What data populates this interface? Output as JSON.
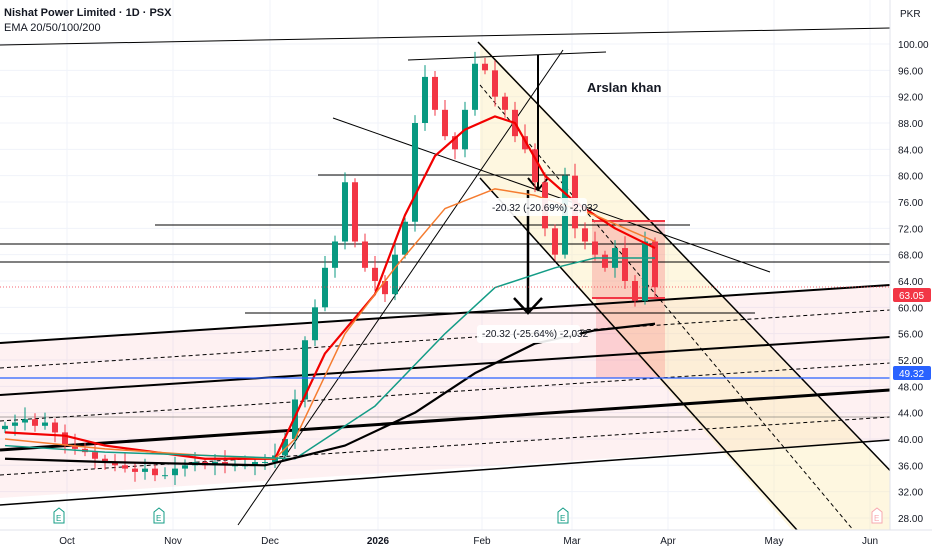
{
  "header": {
    "title": "Nishat Power Limited · 1D · PSX",
    "indicator": "EMA 20/50/100/200"
  },
  "currency": "PKR",
  "annotations": {
    "author": "Arslan khan",
    "measure_1": "-20.32 (-20.69%) -2,032",
    "measure_2": "-20.32 (-25.64%) -2,032"
  },
  "price_labels": {
    "last": "63.05",
    "last_color": "#f23645",
    "level": "49.32",
    "level_color": "#2962ff"
  },
  "earnings_marker": "E",
  "chart_data": {
    "type": "candlestick",
    "title": "Nishat Power Limited · 1D · PSX",
    "ylim": [
      28,
      100
    ],
    "y_ticks": [
      "100.00",
      "96.00",
      "92.00",
      "88.00",
      "84.00",
      "80.00",
      "76.00",
      "72.00",
      "68.00",
      "64.00",
      "60.00",
      "56.00",
      "52.00",
      "48.00",
      "44.00",
      "40.00",
      "36.00",
      "32.00",
      "28.00"
    ],
    "x_ticks": [
      "Oct",
      "Nov",
      "Dec",
      "2026",
      "Feb",
      "Mar",
      "Apr",
      "May",
      "Jun"
    ],
    "closes": [
      42,
      42.5,
      43,
      42,
      42.5,
      41,
      39,
      38.5,
      38,
      37,
      36.5,
      36,
      35.5,
      35,
      35.5,
      34.5,
      34.5,
      35.5,
      36,
      36.5,
      36,
      36.5,
      36,
      36,
      36,
      36.5,
      36.5,
      37.5,
      40,
      46,
      55,
      60,
      66,
      70,
      79,
      70,
      66,
      64,
      62,
      68,
      73,
      88,
      95,
      90,
      86,
      84,
      90,
      97,
      96,
      92,
      90,
      86,
      84,
      79,
      72,
      68,
      80,
      72,
      70,
      68,
      66,
      69,
      64,
      61,
      70,
      63.05
    ],
    "series": [
      {
        "name": "EMA 20",
        "color": "#f20000",
        "points": [
          [
            0,
            41
          ],
          [
            6,
            40.5
          ],
          [
            10,
            39
          ],
          [
            20,
            37
          ],
          [
            27,
            37
          ],
          [
            32,
            53
          ],
          [
            37,
            62
          ],
          [
            40,
            74
          ],
          [
            43,
            83
          ],
          [
            46,
            87
          ],
          [
            49,
            89
          ],
          [
            51,
            88
          ],
          [
            54,
            80
          ],
          [
            57,
            76
          ],
          [
            61,
            72
          ],
          [
            65,
            69
          ]
        ]
      },
      {
        "name": "EMA 50",
        "color": "#f57c30",
        "points": [
          [
            0,
            40
          ],
          [
            10,
            38.5
          ],
          [
            20,
            37.5
          ],
          [
            27,
            37
          ],
          [
            29,
            40
          ],
          [
            34,
            56
          ],
          [
            39,
            66
          ],
          [
            44,
            75
          ],
          [
            49,
            78
          ],
          [
            53,
            77
          ],
          [
            59,
            74
          ],
          [
            65,
            70
          ]
        ]
      },
      {
        "name": "EMA 100",
        "color": "#139c86",
        "points": [
          [
            0,
            39
          ],
          [
            10,
            38
          ],
          [
            20,
            37.5
          ],
          [
            29,
            37
          ],
          [
            37,
            45
          ],
          [
            44,
            56
          ],
          [
            49,
            63
          ],
          [
            55,
            66
          ],
          [
            59,
            67.5
          ],
          [
            65,
            67.5
          ]
        ]
      },
      {
        "name": "EMA 200",
        "color": "#000000",
        "points": [
          [
            0,
            37
          ],
          [
            10,
            36.5
          ],
          [
            26,
            36
          ],
          [
            34,
            39
          ],
          [
            41,
            44
          ],
          [
            47,
            50
          ],
          [
            53,
            54.5
          ],
          [
            59,
            56.5
          ],
          [
            65,
            57.5
          ]
        ]
      }
    ],
    "last_price": 63.05,
    "horizontal_level": 49.32
  }
}
